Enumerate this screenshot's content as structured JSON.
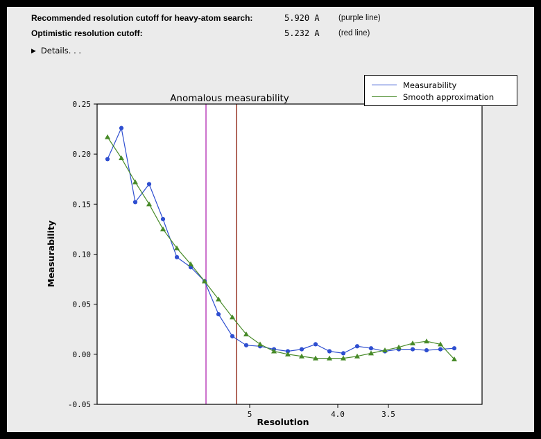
{
  "window": {
    "frame_color": "#000000",
    "panel_color": "#ebebeb"
  },
  "header": {
    "rows": [
      {
        "label": "Recommended resolution cutoff for heavy-atom search:",
        "value": "5.920 A",
        "note": "(purple line)"
      },
      {
        "label": "Optimistic resolution cutoff:",
        "value": "5.232 A",
        "note": "(red line)"
      }
    ],
    "details_label": "Details. . ."
  },
  "chart_data": {
    "type": "line",
    "title": "Anomalous measurability",
    "xlabel": "Resolution",
    "ylabel": "Measurability",
    "ylim": [
      -0.05,
      0.25
    ],
    "grid": false,
    "legend_position": "top-right",
    "x_axis_note": "resolution in Angstrom, decreasing left to right; 26 bins evenly spaced",
    "bins": 26,
    "y_ticks": [
      {
        "v": -0.05,
        "label": "-0.05"
      },
      {
        "v": 0.0,
        "label": "0.00"
      },
      {
        "v": 0.05,
        "label": "0.05"
      },
      {
        "v": 0.1,
        "label": "0.10"
      },
      {
        "v": 0.15,
        "label": "0.15"
      },
      {
        "v": 0.2,
        "label": "0.20"
      },
      {
        "v": 0.25,
        "label": "0.25"
      }
    ],
    "x_ticks": [
      {
        "label": "5",
        "bin": 11.25
      },
      {
        "label": "4.0",
        "bin": 17.6
      },
      {
        "label": "3.5",
        "bin": 21.25
      }
    ],
    "series": [
      {
        "name": "Measurability",
        "color": "#2e4ed0",
        "marker": "circle",
        "values": [
          0.195,
          0.226,
          0.152,
          0.17,
          0.135,
          0.097,
          0.087,
          0.073,
          0.04,
          0.018,
          0.009,
          0.008,
          0.005,
          0.003,
          0.005,
          0.01,
          0.003,
          0.001,
          0.008,
          0.006,
          0.003,
          0.005,
          0.005,
          0.004,
          0.005,
          0.006
        ]
      },
      {
        "name": "Smooth approximation",
        "color": "#478a28",
        "marker": "triangle",
        "values": [
          0.217,
          0.196,
          0.172,
          0.15,
          0.125,
          0.106,
          0.09,
          0.073,
          0.055,
          0.037,
          0.02,
          0.01,
          0.003,
          0.0,
          -0.002,
          -0.004,
          -0.004,
          -0.004,
          -0.002,
          0.001,
          0.004,
          0.007,
          0.011,
          0.013,
          0.01,
          -0.005
        ]
      }
    ],
    "vlines": [
      {
        "name": "purple line",
        "resolution_A": "5.920",
        "bin": 8.1,
        "color": "#bb44bb"
      },
      {
        "name": "red line",
        "resolution_A": "5.232",
        "bin": 10.3,
        "color": "#993626"
      }
    ]
  }
}
